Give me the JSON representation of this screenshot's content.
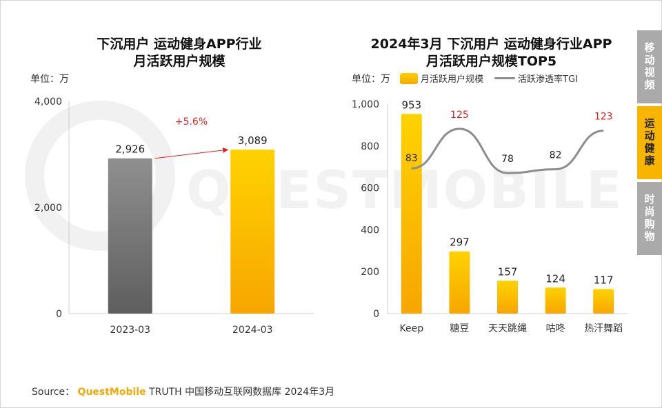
{
  "sidebar": {
    "tabs": [
      {
        "label": "移动视频",
        "active": false
      },
      {
        "label": "运动健康",
        "active": true
      },
      {
        "label": "时尚购物",
        "active": false
      }
    ]
  },
  "source": {
    "prefix": "Source：",
    "brand": "QuestMobile",
    "text": "TRUTH 中国移动互联网数据库 2024年3月"
  },
  "watermark": "QUESTMOBILE",
  "colors": {
    "bar_gold_top": "#ffd200",
    "bar_gold_bottom": "#f7a600",
    "bar_gray_top": "#8f8f8f",
    "bar_gray_bottom": "#5e5e5e",
    "growth_red": "#e02020",
    "tgi_line": "#8c8c8c"
  },
  "chart_data": [
    {
      "type": "bar",
      "title_line1": "下沉用户 运动健身APP行业",
      "title_line2": "月活跃用户规模",
      "unit_label": "单位：万",
      "categories": [
        "2023-03",
        "2024-03"
      ],
      "values": [
        2926,
        3089
      ],
      "value_labels": [
        "2,926",
        "3,089"
      ],
      "y_ticks": [
        "0",
        "2,000",
        "4,000"
      ],
      "ylim": [
        0,
        4000
      ],
      "growth_annotation": "+5.6%"
    },
    {
      "type": "bar+line",
      "title_line1": "2024年3月 下沉用户 运动健身行业APP",
      "title_line2": "月活跃用户规模TOP5",
      "unit_label": "单位：万",
      "legend": {
        "bar": "月活跃用户规模",
        "line": "活跃渗透率TGI"
      },
      "categories": [
        "Keep",
        "糖豆",
        "天天跳绳",
        "咕咚",
        "热汗舞蹈"
      ],
      "series": [
        {
          "name": "月活跃用户规模",
          "values": [
            953,
            297,
            157,
            124,
            117
          ]
        },
        {
          "name": "活跃渗透率TGI",
          "values": [
            83,
            125,
            78,
            82,
            123
          ]
        }
      ],
      "y_ticks": [
        "0",
        "200",
        "400",
        "600",
        "800",
        "1,000"
      ],
      "ylim": [
        0,
        1000
      ],
      "tgi_highlight": [
        false,
        true,
        false,
        false,
        true
      ]
    }
  ]
}
